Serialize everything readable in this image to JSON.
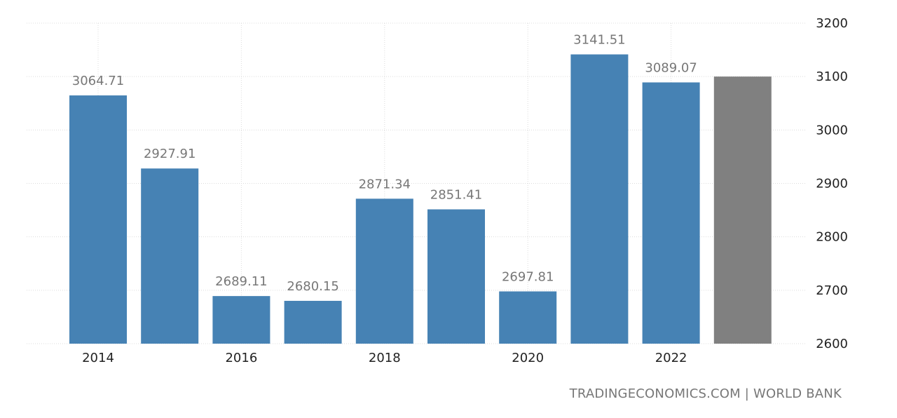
{
  "chart_data": {
    "type": "bar",
    "categories": [
      "2014",
      "2015",
      "2016",
      "2017",
      "2018",
      "2019",
      "2020",
      "2021",
      "2022",
      "2023"
    ],
    "values": [
      3064.71,
      2927.91,
      2689.11,
      2680.15,
      2871.34,
      2851.41,
      2697.81,
      3141.51,
      3089.07,
      3100
    ],
    "data_labels": [
      "3064.71",
      "2927.91",
      "2689.11",
      "2680.15",
      "2871.34",
      "2851.41",
      "2697.81",
      "3141.51",
      "3089.07",
      ""
    ],
    "x_tick_labels": [
      "2014",
      "2016",
      "2018",
      "2020",
      "2022"
    ],
    "y_ticks": [
      2600,
      2700,
      2800,
      2900,
      3000,
      3100,
      3200
    ],
    "ylim": [
      2600,
      3200
    ],
    "y_axis_position": "right",
    "grid": true,
    "colors": {
      "bar": "#4682b4",
      "forecast_bar": "#808080"
    },
    "title": "",
    "xlabel": "",
    "ylabel": ""
  },
  "source": "TRADINGECONOMICS.COM | WORLD BANK"
}
